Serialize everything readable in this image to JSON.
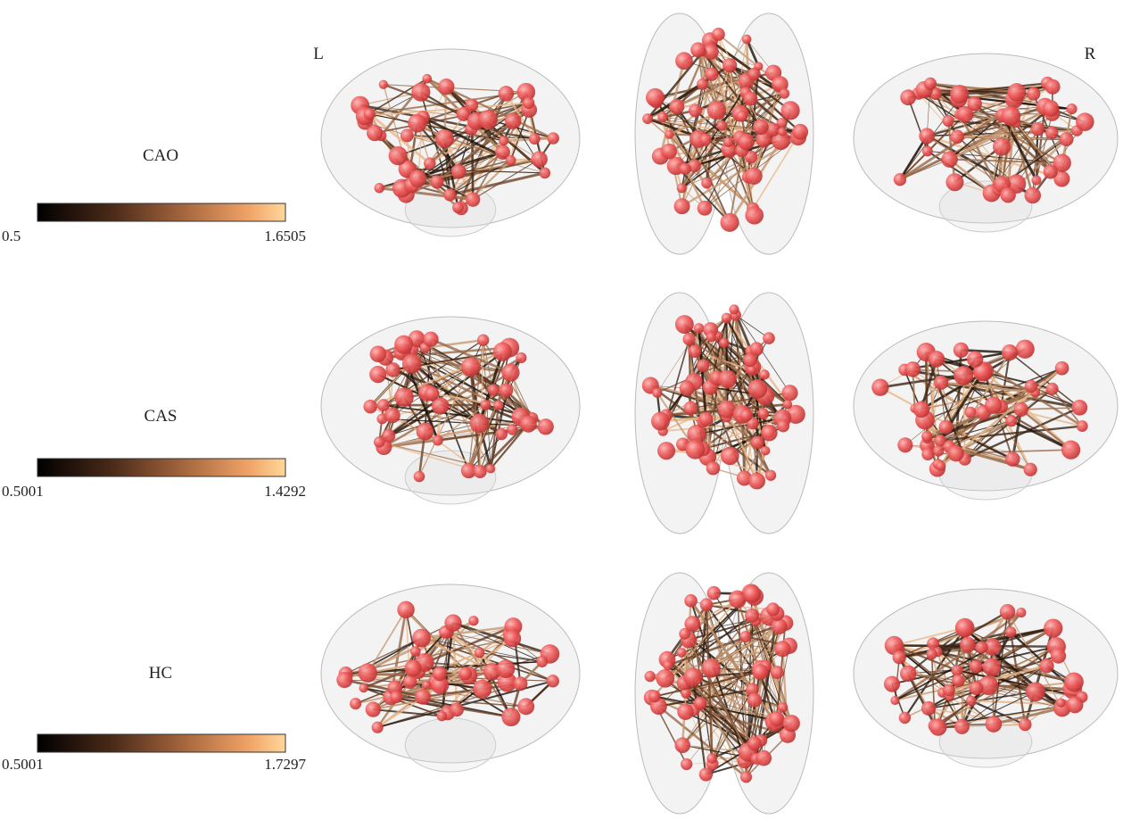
{
  "side_labels": {
    "left": "L",
    "right": "R"
  },
  "rows": [
    {
      "group": "CAO",
      "colorbar_min": "0.5",
      "colorbar_max": "1.6505"
    },
    {
      "group": "CAS",
      "colorbar_min": "0.5001",
      "colorbar_max": "1.4292"
    },
    {
      "group": "HC",
      "colorbar_min": "0.5001",
      "colorbar_max": "1.7297"
    }
  ]
}
